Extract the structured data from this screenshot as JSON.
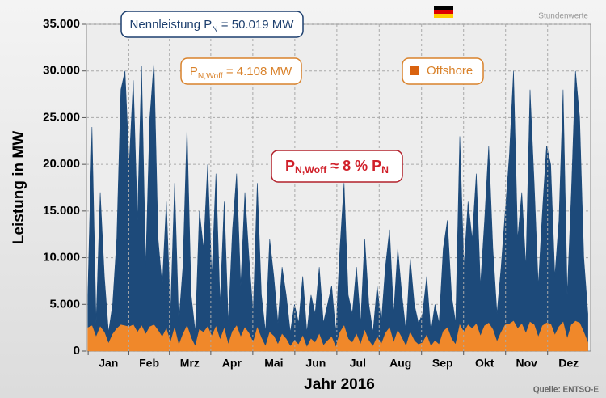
{
  "chart_data": {
    "type": "area",
    "annotations": [
      {
        "parts": [
          "Nennleistung P",
          "N",
          " = 50.019 MW"
        ]
      },
      {
        "parts": [
          "P",
          "N,Woff",
          " = 4.108 MW"
        ]
      },
      {
        "parts": [
          "P",
          "N,Woff",
          " ≈ 8 % P",
          "N"
        ]
      }
    ],
    "note": "Stundenwerte",
    "source": "Quelle: ENTSO-E",
    "ylabel": "Leistung in MW",
    "xlabel": "Jahr 2016",
    "ylim": [
      0,
      35000
    ],
    "yticks": [
      0,
      {
        "value": 5000,
        "label": "5.000"
      },
      {
        "value": 10000,
        "label": "10.000"
      },
      {
        "value": 15000,
        "label": "15.000"
      },
      {
        "value": 20000,
        "label": "20.000"
      },
      {
        "value": 25000,
        "label": "25.000"
      },
      {
        "value": 30000,
        "label": "30.000"
      },
      {
        "value": 35000,
        "label": "35.000"
      }
    ],
    "xlim": [
      0,
      366
    ],
    "xticks": [
      {
        "value": 16,
        "label": "Jan"
      },
      {
        "value": 45.5,
        "label": "Feb"
      },
      {
        "value": 75,
        "label": "Mrz"
      },
      {
        "value": 105.5,
        "label": "Apr"
      },
      {
        "value": 136,
        "label": "Mai"
      },
      {
        "value": 166.5,
        "label": "Jun"
      },
      {
        "value": 197,
        "label": "Jul"
      },
      {
        "value": 228,
        "label": "Aug"
      },
      {
        "value": 258.5,
        "label": "Sep"
      },
      {
        "value": 289,
        "label": "Okt"
      },
      {
        "value": 319.5,
        "label": "Nov"
      },
      {
        "value": 350,
        "label": "Dez"
      }
    ],
    "grid": true,
    "x": [
      1,
      4,
      7,
      10,
      13,
      16,
      19,
      22,
      25,
      28,
      31,
      34,
      37,
      40,
      43,
      46,
      49,
      52,
      55,
      58,
      61,
      64,
      67,
      70,
      73,
      76,
      79,
      82,
      85,
      88,
      91,
      94,
      97,
      100,
      103,
      106,
      109,
      112,
      115,
      118,
      121,
      124,
      127,
      130,
      133,
      136,
      139,
      142,
      145,
      148,
      151,
      154,
      157,
      160,
      163,
      166,
      169,
      172,
      175,
      178,
      181,
      184,
      187,
      190,
      193,
      196,
      199,
      202,
      205,
      208,
      211,
      214,
      217,
      220,
      223,
      226,
      229,
      232,
      235,
      238,
      241,
      244,
      247,
      250,
      253,
      256,
      259,
      262,
      265,
      268,
      271,
      274,
      277,
      280,
      283,
      286,
      289,
      292,
      295,
      298,
      301,
      304,
      307,
      310,
      313,
      316,
      319,
      322,
      325,
      328,
      331,
      334,
      337,
      340,
      343,
      346,
      349,
      352,
      355,
      358,
      361,
      364
    ],
    "series": [
      {
        "color": "#1d4a7a",
        "values": [
          6000,
          24000,
          3000,
          17000,
          8000,
          2000,
          5000,
          12000,
          28000,
          30000,
          20000,
          29000,
          14000,
          30500,
          9000,
          25000,
          31000,
          12000,
          7000,
          16000,
          4000,
          18000,
          3000,
          9000,
          24000,
          6000,
          2000,
          15000,
          11000,
          20000,
          8000,
          19000,
          5000,
          16000,
          3000,
          13000,
          19000,
          7000,
          17000,
          10000,
          4000,
          18000,
          6000,
          2000,
          12000,
          8000,
          3000,
          9000,
          6000,
          2000,
          5000,
          3000,
          8000,
          2000,
          6000,
          4000,
          9000,
          3000,
          5000,
          7000,
          2000,
          11000,
          18000,
          6000,
          4000,
          9000,
          3000,
          12000,
          5000,
          2000,
          7000,
          3000,
          9000,
          13000,
          4000,
          11000,
          6000,
          2000,
          10000,
          5000,
          3000,
          4000,
          8000,
          2000,
          5000,
          3000,
          11000,
          14000,
          6000,
          3000,
          23000,
          9000,
          16000,
          12000,
          19000,
          7000,
          14000,
          22000,
          11000,
          4000,
          9000,
          15000,
          21000,
          30000,
          12000,
          17000,
          9000,
          28000,
          18000,
          7000,
          15000,
          22000,
          20000,
          8000,
          14000,
          28000,
          6000,
          17000,
          30000,
          25000,
          10000,
          4000
        ]
      },
      {
        "name": "Offshore",
        "color": "#f0882a",
        "values": [
          2500,
          2700,
          1500,
          2600,
          2000,
          800,
          1800,
          2400,
          2800,
          2700,
          2600,
          2800,
          2000,
          2700,
          1800,
          2600,
          2800,
          2200,
          1500,
          2400,
          900,
          2500,
          600,
          1800,
          2700,
          1400,
          500,
          2300,
          2000,
          2600,
          1600,
          2600,
          1200,
          2400,
          700,
          2100,
          2700,
          1500,
          2500,
          1900,
          900,
          2500,
          1400,
          500,
          2000,
          1600,
          700,
          1800,
          1300,
          500,
          1100,
          700,
          1600,
          400,
          1300,
          900,
          1800,
          600,
          1100,
          1500,
          400,
          2000,
          2700,
          1300,
          900,
          1800,
          700,
          2200,
          1100,
          500,
          1500,
          700,
          1900,
          2500,
          900,
          2200,
          1400,
          500,
          2000,
          1100,
          700,
          900,
          1700,
          500,
          1100,
          700,
          2100,
          2500,
          1300,
          700,
          2800,
          2000,
          2800,
          2400,
          2900,
          1600,
          2700,
          3000,
          2300,
          1000,
          2000,
          2800,
          2900,
          3200,
          2400,
          2900,
          1900,
          3100,
          2800,
          1500,
          2700,
          3000,
          2900,
          1700,
          2600,
          3100,
          1300,
          2800,
          3200,
          3000,
          2000,
          900
        ]
      }
    ]
  }
}
